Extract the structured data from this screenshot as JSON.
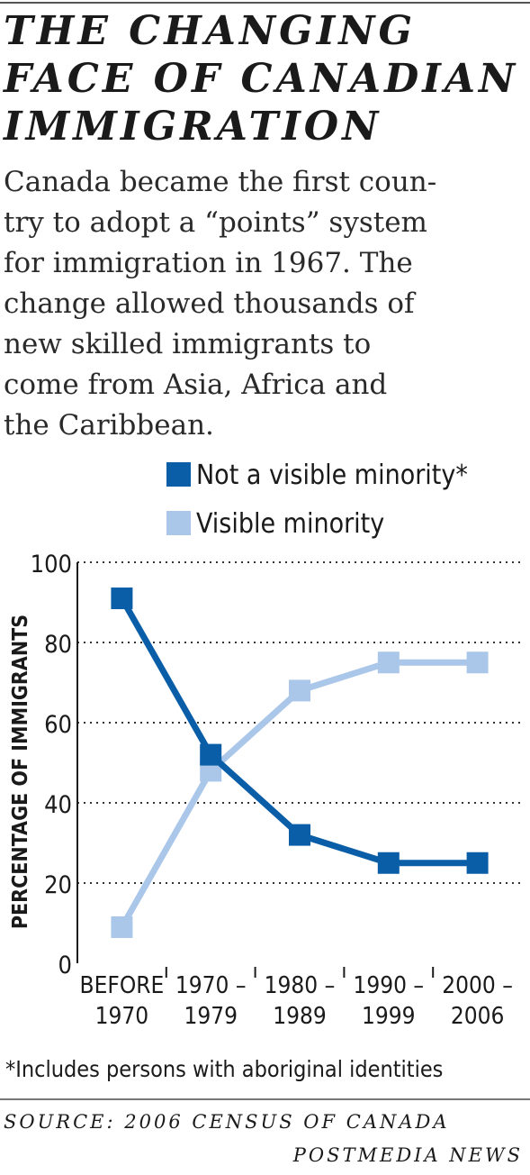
{
  "header": {
    "title_lines": [
      "THE CHANGING",
      "FACE OF CANADIAN",
      "IMMIGRATION"
    ],
    "intro_lines": [
      "Canada became the first coun-",
      "try to adopt a “points” system",
      "for immigration in 1967. The",
      "change allowed thousands of",
      "new skilled immigrants to",
      "come from Asia, Africa and",
      "the Caribbean."
    ]
  },
  "chart_data": {
    "type": "line",
    "categories": [
      [
        "BEFORE",
        "1970"
      ],
      [
        "1970 –",
        "1979"
      ],
      [
        "1980 –",
        "1989"
      ],
      [
        "1990 –",
        "1999"
      ],
      [
        "2000 –",
        "2006"
      ]
    ],
    "series": [
      {
        "name": "Not a visible minority*",
        "color": "#0a5ea8",
        "values": [
          91,
          52,
          32,
          25,
          25
        ]
      },
      {
        "name": "Visible minority",
        "color": "#aac7ea",
        "values": [
          9,
          48,
          68,
          75,
          75
        ]
      }
    ],
    "ylabel": "PERCENTAGE OF IMMIGRANTS",
    "xlabel": "",
    "ylim": [
      0,
      100
    ],
    "yticks": [
      0,
      20,
      40,
      60,
      80,
      100
    ],
    "grid": "horizontal dotted",
    "legend_position": "top-right",
    "marker": "square"
  },
  "footer": {
    "footnote": "*Includes persons with aboriginal identities",
    "source": "SOURCE: 2006 CENSUS OF CANADA",
    "credit": "POSTMEDIA NEWS"
  }
}
